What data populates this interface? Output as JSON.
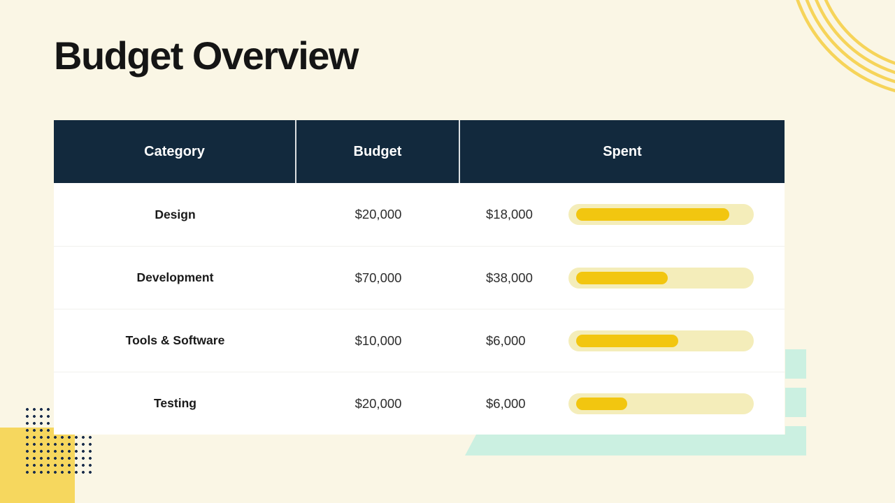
{
  "title": "Budget Overview",
  "table": {
    "headers": [
      "Category",
      "Budget",
      "Spent"
    ],
    "rows": [
      {
        "category": "Design",
        "budget": "$20,000",
        "spent": "$18,000",
        "spent_pct": 90
      },
      {
        "category": "Development",
        "budget": "$70,000",
        "spent": "$38,000",
        "spent_pct": 54
      },
      {
        "category": "Tools & Software",
        "budget": "$10,000",
        "spent": "$6,000",
        "spent_pct": 60
      },
      {
        "category": "Testing",
        "budget": "$20,000",
        "spent": "$6,000",
        "spent_pct": 30
      }
    ]
  },
  "colors": {
    "background": "#FAF6E5",
    "header_bg": "#12293D",
    "header_text": "#FFFFFF",
    "bar_fill": "#F2C610",
    "bar_track": "#F4EDBA",
    "accent_yellow": "#F6D45A",
    "square_yellow": "#F6D75E",
    "mint": "#CBF0E1",
    "dots_navy": "#1C2F4D",
    "title_color": "#151515"
  }
}
